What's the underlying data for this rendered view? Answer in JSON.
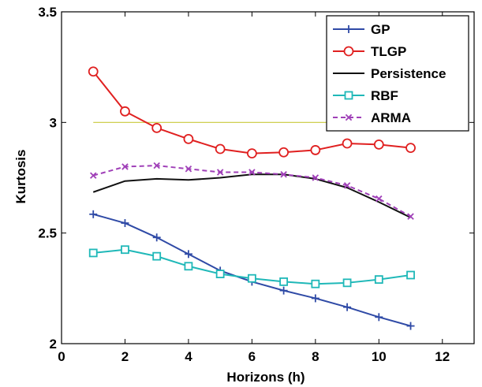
{
  "chart_data": {
    "type": "line",
    "title": "",
    "xlabel": "Horizons (h)",
    "ylabel": "Kurtosis",
    "xlim": [
      0,
      13
    ],
    "ylim": [
      2,
      3.5
    ],
    "xticks": [
      0,
      2,
      4,
      6,
      8,
      10,
      12
    ],
    "yticks": [
      2,
      2.5,
      3,
      3.5
    ],
    "xtick_labels": [
      "0",
      "2",
      "4",
      "6",
      "8",
      "10",
      "12"
    ],
    "ytick_labels": [
      "2",
      "2.5",
      "3",
      "3.5"
    ],
    "grid": false,
    "legend_position": "top-right",
    "x": [
      1,
      2,
      3,
      4,
      5,
      6,
      7,
      8,
      9,
      10,
      11
    ],
    "series": [
      {
        "name": "GP",
        "color": "#2f4aa6",
        "marker": "plus",
        "dash": "solid",
        "values": [
          2.585,
          2.545,
          2.48,
          2.405,
          2.33,
          2.28,
          2.24,
          2.205,
          2.165,
          2.12,
          2.08
        ]
      },
      {
        "name": "TLGP",
        "color": "#e02020",
        "marker": "circle",
        "dash": "solid",
        "values": [
          3.23,
          3.05,
          2.975,
          2.925,
          2.88,
          2.86,
          2.865,
          2.875,
          2.905,
          2.9,
          2.885
        ]
      },
      {
        "name": "Persistence",
        "color": "#111111",
        "marker": "none",
        "dash": "solid",
        "values": [
          2.685,
          2.735,
          2.745,
          2.74,
          2.75,
          2.765,
          2.765,
          2.745,
          2.705,
          2.64,
          2.57
        ]
      },
      {
        "name": "RBF",
        "color": "#1fb8b8",
        "marker": "square",
        "dash": "solid",
        "values": [
          2.41,
          2.425,
          2.395,
          2.35,
          2.315,
          2.295,
          2.28,
          2.27,
          2.275,
          2.29,
          2.31
        ]
      },
      {
        "name": "ARMA",
        "color": "#a040b8",
        "marker": "x",
        "dash": "dashed",
        "values": [
          2.76,
          2.8,
          2.805,
          2.79,
          2.775,
          2.775,
          2.765,
          2.75,
          2.715,
          2.655,
          2.575
        ]
      }
    ],
    "reference_lines": [
      {
        "y": 3.0,
        "x_range": [
          1,
          11
        ],
        "color": "#c9c93a"
      }
    ]
  }
}
